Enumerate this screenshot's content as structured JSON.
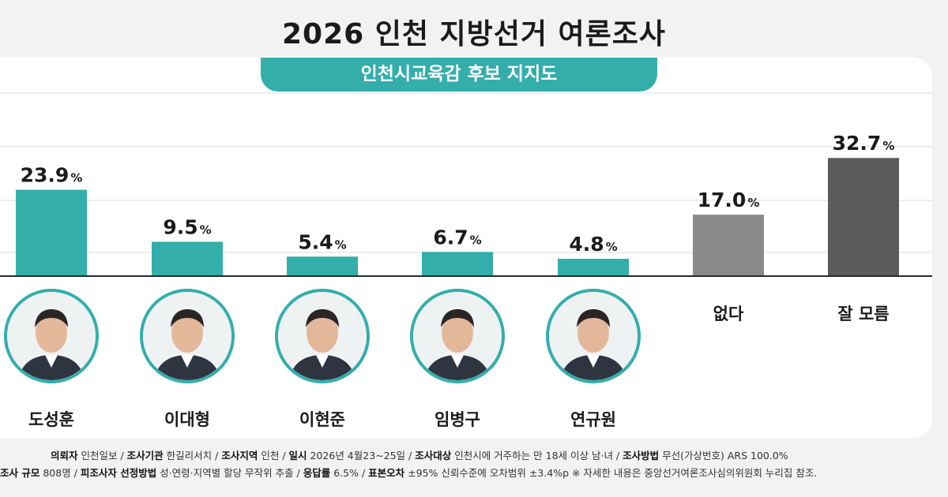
{
  "title": "2026 인천 지방선거 여론조사",
  "subtitle": "인천시교육감 후보 지지도",
  "colors": {
    "accent": "#33aeab",
    "none": "#8a8a8a",
    "unknown": "#5b5a5c"
  },
  "chart_data": {
    "type": "bar",
    "title": "인천시교육감 후보 지지도",
    "unit": "%",
    "categories": [
      "도성훈",
      "이대형",
      "이현준",
      "임병구",
      "연규원",
      "없다",
      "잘 모름"
    ],
    "values": [
      23.9,
      9.5,
      5.4,
      6.7,
      4.8,
      17.0,
      32.7
    ],
    "labels": [
      "23.9",
      "9.5",
      "5.4",
      "6.7",
      "4.8",
      "17.0",
      "32.7"
    ],
    "bar_colors": [
      "#33aeab",
      "#33aeab",
      "#33aeab",
      "#33aeab",
      "#33aeab",
      "#8a8a8a",
      "#5b5a5c"
    ],
    "ylim": [
      0,
      40
    ],
    "grid": true,
    "legend": "none"
  },
  "footer": {
    "line1": [
      {
        "k": "의뢰자",
        "v": "인천일보"
      },
      {
        "k": "조사기관",
        "v": "한길리서치"
      },
      {
        "k": "조사지역",
        "v": "인천"
      },
      {
        "k": "일시",
        "v": "2026년 4월23~25일"
      },
      {
        "k": "조사대상",
        "v": "인천시에 거주하는 만 18세 이상 남·녀"
      },
      {
        "k": "조사방법",
        "v": "무선(가상번호) ARS 100.0%"
      }
    ],
    "line2": [
      {
        "k": "조사 규모",
        "v": "808명"
      },
      {
        "k": "피조사자 선정방법",
        "v": "성·연령·지역별 할당 무작위 추출"
      },
      {
        "k": "응답률",
        "v": "6.5%"
      },
      {
        "k": "표본오차",
        "v": "±95% 신뢰수준에 오차범위 ±3.4%p"
      }
    ],
    "note": "※ 자세한 내용은 중앙선거여론조사심의위원회 누리집 참조."
  }
}
